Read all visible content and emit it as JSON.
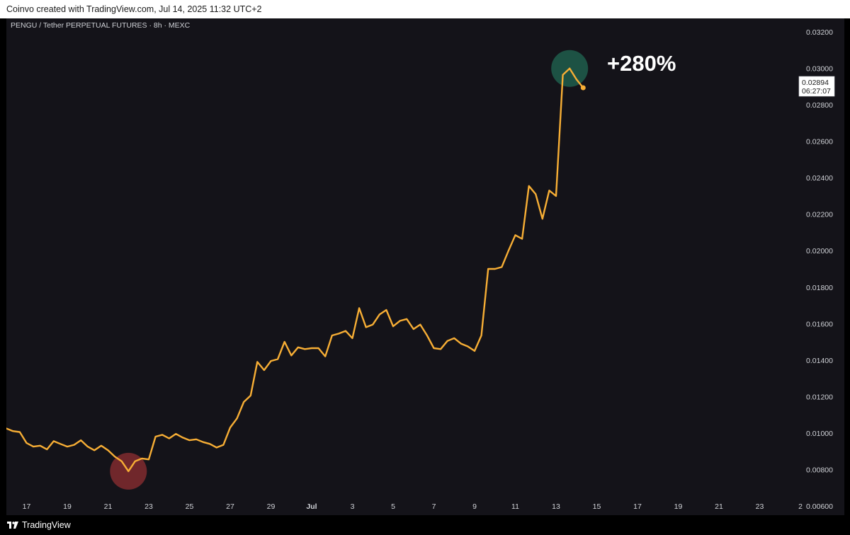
{
  "header": {
    "caption": "Coinvo created with TradingView.com, Jul 14, 2025 11:32 UTC+2"
  },
  "footer": {
    "logo_text": "TradingView"
  },
  "colors": {
    "background": "#141319",
    "line": "#f7ae35",
    "axis_text": "#cfd1d6",
    "low_marker": "#7a2a2e",
    "high_marker": "#1e5a49",
    "annotation": "#ffffff"
  },
  "chart_data": {
    "type": "line",
    "title": "PENGU / Tether PERPETUAL FUTURES · 8h · MEXC",
    "symbol": "PENGU / Tether PERPETUAL FUTURES",
    "interval": "8h",
    "exchange": "MEXC",
    "y_scale": "linear",
    "y_side": "right",
    "ylim": [
      0.0058,
      0.0322
    ],
    "y_ticks": [
      "0.03200",
      "0.03000",
      "0.02800",
      "0.02600",
      "0.02400",
      "0.02200",
      "0.02000",
      "0.01800",
      "0.01600",
      "0.01400",
      "0.01200",
      "0.01000",
      "0.00800",
      "0.00600"
    ],
    "x_ticks": [
      "17",
      "19",
      "21",
      "23",
      "25",
      "27",
      "29",
      "Jul",
      "3",
      "5",
      "7",
      "9",
      "11",
      "13",
      "15",
      "17",
      "19",
      "21",
      "23",
      "2"
    ],
    "grid": false,
    "last_price": {
      "value": "0.02894",
      "countdown": "06:27:07"
    },
    "annotations": {
      "gain_label": "+280%"
    },
    "series": [
      {
        "x": [
          "2025-06-16 00:00",
          "2025-06-16 08:00",
          "2025-06-16 16:00",
          "2025-06-17 00:00",
          "2025-06-17 08:00",
          "2025-06-17 16:00",
          "2025-06-18 00:00",
          "2025-06-18 08:00",
          "2025-06-18 16:00",
          "2025-06-19 00:00",
          "2025-06-19 08:00",
          "2025-06-19 16:00",
          "2025-06-20 00:00",
          "2025-06-20 08:00",
          "2025-06-20 16:00",
          "2025-06-21 00:00",
          "2025-06-21 08:00",
          "2025-06-21 16:00",
          "2025-06-22 00:00",
          "2025-06-22 08:00",
          "2025-06-22 16:00",
          "2025-06-23 00:00",
          "2025-06-23 08:00",
          "2025-06-23 16:00",
          "2025-06-24 00:00",
          "2025-06-24 08:00",
          "2025-06-24 16:00",
          "2025-06-25 00:00",
          "2025-06-25 08:00",
          "2025-06-25 16:00",
          "2025-06-26 00:00",
          "2025-06-26 08:00",
          "2025-06-26 16:00",
          "2025-06-27 00:00",
          "2025-06-27 08:00",
          "2025-06-27 16:00",
          "2025-06-28 00:00",
          "2025-06-28 08:00",
          "2025-06-28 16:00",
          "2025-06-29 00:00",
          "2025-06-29 08:00",
          "2025-06-29 16:00",
          "2025-06-30 00:00",
          "2025-06-30 08:00",
          "2025-06-30 16:00",
          "2025-07-01 00:00",
          "2025-07-01 08:00",
          "2025-07-01 16:00",
          "2025-07-02 00:00",
          "2025-07-02 08:00",
          "2025-07-02 16:00",
          "2025-07-03 00:00",
          "2025-07-03 08:00",
          "2025-07-03 16:00",
          "2025-07-04 00:00",
          "2025-07-04 08:00",
          "2025-07-04 16:00",
          "2025-07-05 00:00",
          "2025-07-05 08:00",
          "2025-07-05 16:00",
          "2025-07-06 00:00",
          "2025-07-06 08:00",
          "2025-07-06 16:00",
          "2025-07-07 00:00",
          "2025-07-07 08:00",
          "2025-07-07 16:00",
          "2025-07-08 00:00",
          "2025-07-08 08:00",
          "2025-07-08 16:00",
          "2025-07-09 00:00",
          "2025-07-09 08:00",
          "2025-07-09 16:00",
          "2025-07-10 00:00",
          "2025-07-10 08:00",
          "2025-07-10 16:00",
          "2025-07-11 00:00",
          "2025-07-11 08:00",
          "2025-07-11 16:00",
          "2025-07-12 00:00",
          "2025-07-12 08:00",
          "2025-07-12 16:00",
          "2025-07-13 00:00",
          "2025-07-13 08:00",
          "2025-07-13 16:00",
          "2025-07-14 00:00",
          "2025-07-14 08:00"
        ],
        "values": [
          0.01025,
          0.0101,
          0.01005,
          0.00945,
          0.00925,
          0.0093,
          0.0091,
          0.00955,
          0.0094,
          0.00925,
          0.00935,
          0.0096,
          0.00925,
          0.00905,
          0.0093,
          0.00905,
          0.0087,
          0.00845,
          0.0079,
          0.00845,
          0.0086,
          0.00855,
          0.0098,
          0.0099,
          0.0097,
          0.00995,
          0.00975,
          0.0096,
          0.00965,
          0.0095,
          0.0094,
          0.0092,
          0.00935,
          0.0103,
          0.0108,
          0.0117,
          0.01205,
          0.0139,
          0.01345,
          0.01395,
          0.01405,
          0.015,
          0.01425,
          0.0147,
          0.0146,
          0.01465,
          0.01465,
          0.0142,
          0.01535,
          0.01545,
          0.0156,
          0.0152,
          0.01685,
          0.0158,
          0.01595,
          0.0165,
          0.01675,
          0.01585,
          0.01615,
          0.01625,
          0.0157,
          0.01595,
          0.01535,
          0.01465,
          0.0146,
          0.01505,
          0.0152,
          0.0149,
          0.01475,
          0.0145,
          0.01535,
          0.019,
          0.019,
          0.0191,
          0.02,
          0.02085,
          0.02065,
          0.02355,
          0.0231,
          0.02175,
          0.0233,
          0.023,
          0.02965,
          0.03,
          0.0294,
          0.02894
        ]
      }
    ],
    "markers": [
      {
        "kind": "low",
        "x": "2025-06-22 00:00",
        "y": 0.0079
      },
      {
        "kind": "high",
        "x": "2025-07-13 16:00",
        "y": 0.03
      }
    ]
  }
}
